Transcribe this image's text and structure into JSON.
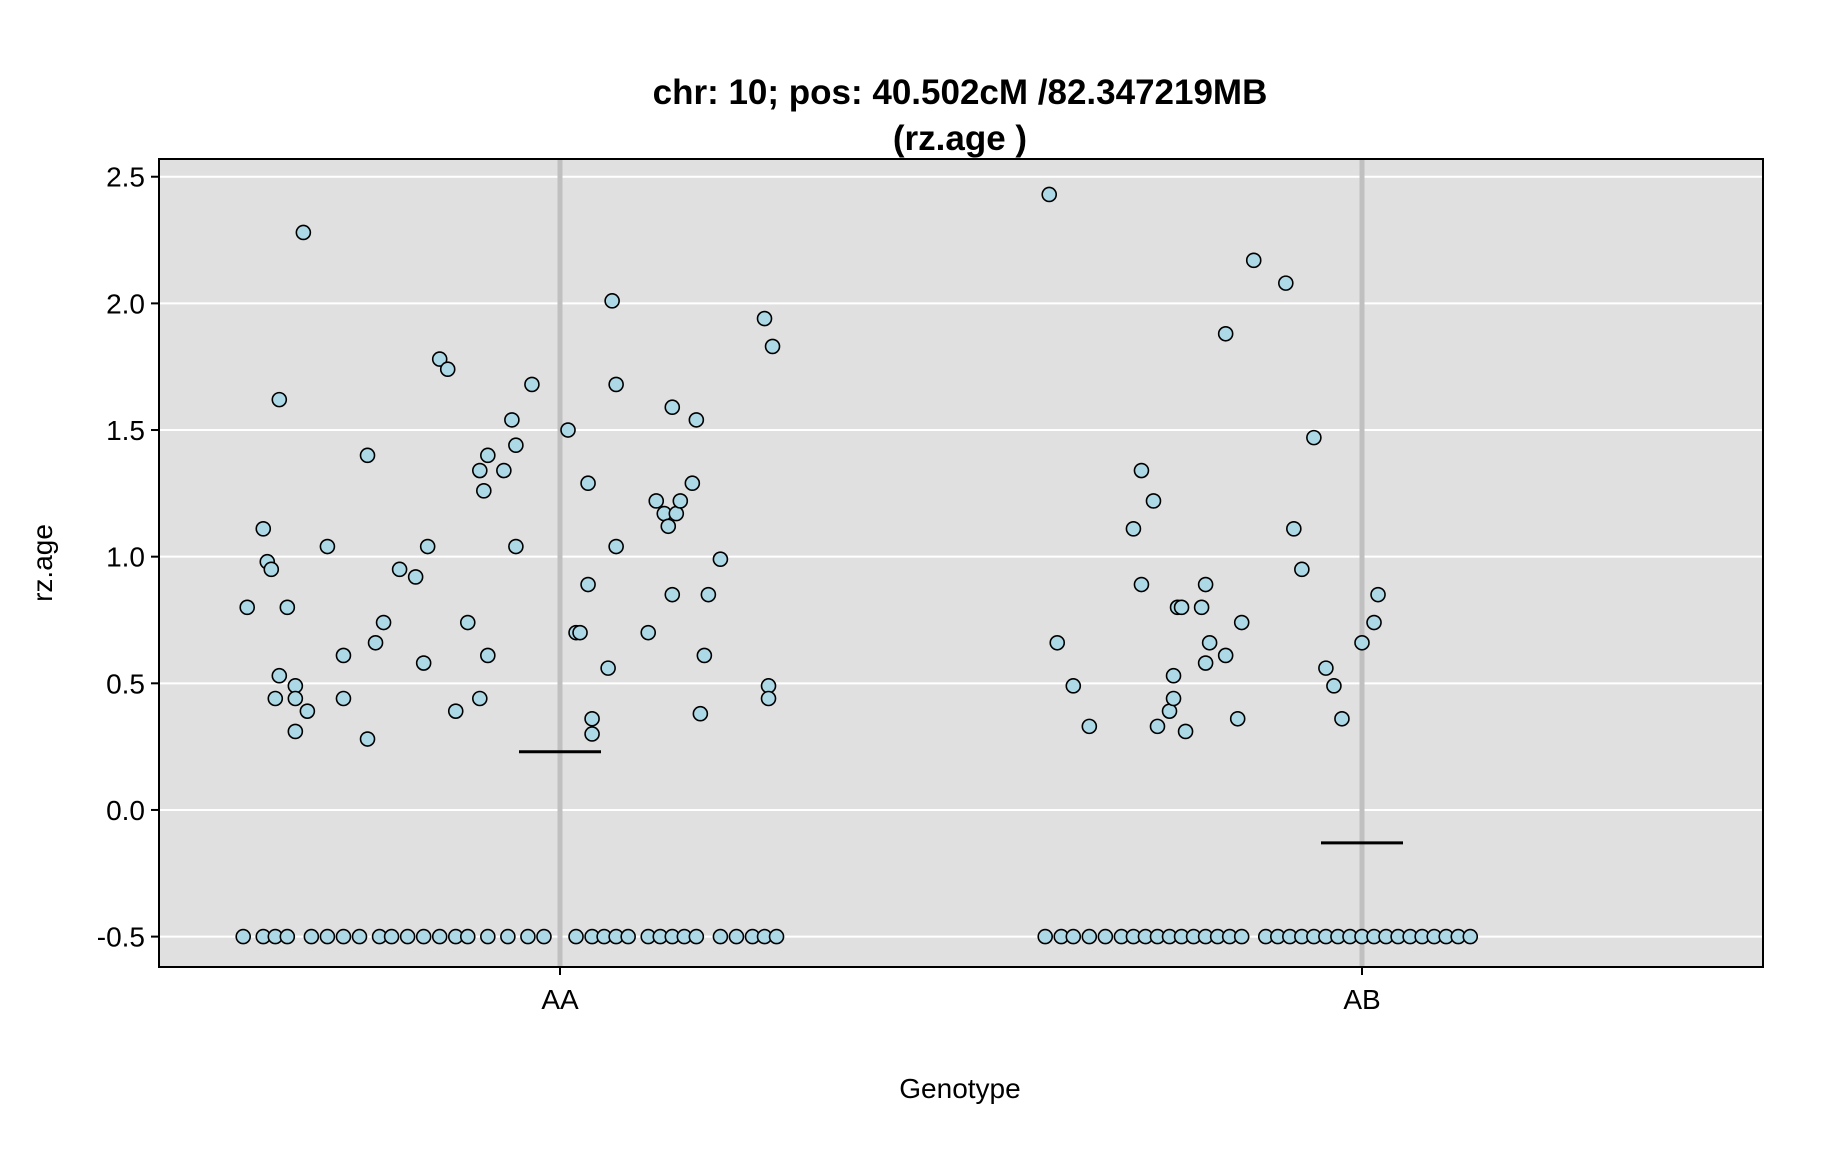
{
  "chart_data": {
    "type": "scatter",
    "title": "chr: 10; pos: 40.502cM /82.347219MB",
    "subtitle": "(rz.age )",
    "xlabel": "Genotype",
    "ylabel": "rz.age",
    "categories": [
      "AA",
      "AB"
    ],
    "ylim": [
      -0.62,
      2.57
    ],
    "yticks": [
      -0.5,
      0.0,
      0.5,
      1.0,
      1.5,
      2.0,
      2.5
    ],
    "ytick_labels": [
      "-0.5",
      "0.0",
      "0.5",
      "1.0",
      "1.5",
      "2.0",
      "2.5"
    ],
    "grid": true,
    "colors": {
      "panel": "#e0e0e0",
      "gridline": "#ffffff",
      "point_fill": "#add8e6",
      "point_edge": "#000000",
      "category_line": "#c0c0c0",
      "mean_line": "#000000"
    },
    "series": [
      {
        "category": "AA",
        "mean": 0.23,
        "points": [
          {
            "j": -0.39,
            "y": 0.8
          },
          {
            "j": -0.37,
            "y": 1.11
          },
          {
            "j": -0.365,
            "y": 0.98
          },
          {
            "j": -0.36,
            "y": 0.95
          },
          {
            "j": -0.35,
            "y": 0.53
          },
          {
            "j": -0.355,
            "y": 0.44
          },
          {
            "j": -0.35,
            "y": 1.62
          },
          {
            "j": -0.34,
            "y": 0.8
          },
          {
            "j": -0.33,
            "y": 0.49
          },
          {
            "j": -0.33,
            "y": 0.44
          },
          {
            "j": -0.33,
            "y": 0.31
          },
          {
            "j": -0.32,
            "y": 2.28
          },
          {
            "j": -0.315,
            "y": 0.39
          },
          {
            "j": -0.29,
            "y": 1.04
          },
          {
            "j": -0.27,
            "y": 0.61
          },
          {
            "j": -0.27,
            "y": 0.44
          },
          {
            "j": -0.24,
            "y": 1.4
          },
          {
            "j": -0.24,
            "y": 0.28
          },
          {
            "j": -0.23,
            "y": 0.66
          },
          {
            "j": -0.22,
            "y": 0.74
          },
          {
            "j": -0.2,
            "y": 0.95
          },
          {
            "j": -0.18,
            "y": 0.92
          },
          {
            "j": -0.17,
            "y": 0.58
          },
          {
            "j": -0.165,
            "y": 1.04
          },
          {
            "j": -0.15,
            "y": 1.78
          },
          {
            "j": -0.14,
            "y": 1.74
          },
          {
            "j": -0.13,
            "y": 0.39
          },
          {
            "j": -0.115,
            "y": 0.74
          },
          {
            "j": -0.1,
            "y": 1.34
          },
          {
            "j": -0.095,
            "y": 1.26
          },
          {
            "j": -0.1,
            "y": 0.44
          },
          {
            "j": -0.09,
            "y": 1.4
          },
          {
            "j": -0.09,
            "y": 0.61
          },
          {
            "j": -0.07,
            "y": 1.34
          },
          {
            "j": -0.06,
            "y": 1.54
          },
          {
            "j": -0.055,
            "y": 1.44
          },
          {
            "j": -0.055,
            "y": 1.04
          },
          {
            "j": -0.035,
            "y": 1.68
          },
          {
            "j": 0.01,
            "y": 1.5
          },
          {
            "j": 0.02,
            "y": 0.7
          },
          {
            "j": 0.025,
            "y": 0.7
          },
          {
            "j": 0.035,
            "y": 1.29
          },
          {
            "j": 0.035,
            "y": 0.89
          },
          {
            "j": 0.04,
            "y": 0.36
          },
          {
            "j": 0.04,
            "y": 0.3
          },
          {
            "j": 0.06,
            "y": 0.56
          },
          {
            "j": 0.065,
            "y": 2.01
          },
          {
            "j": 0.07,
            "y": 1.68
          },
          {
            "j": 0.07,
            "y": 1.04
          },
          {
            "j": 0.11,
            "y": 0.7
          },
          {
            "j": 0.12,
            "y": 1.22
          },
          {
            "j": 0.13,
            "y": 1.17
          },
          {
            "j": 0.135,
            "y": 1.12
          },
          {
            "j": 0.14,
            "y": 1.59
          },
          {
            "j": 0.14,
            "y": 0.85
          },
          {
            "j": 0.145,
            "y": 1.17
          },
          {
            "j": 0.15,
            "y": 1.22
          },
          {
            "j": 0.17,
            "y": 1.54
          },
          {
            "j": 0.165,
            "y": 1.29
          },
          {
            "j": 0.175,
            "y": 0.38
          },
          {
            "j": 0.18,
            "y": 0.61
          },
          {
            "j": 0.185,
            "y": 0.85
          },
          {
            "j": 0.2,
            "y": 0.99
          },
          {
            "j": 0.255,
            "y": 1.94
          },
          {
            "j": 0.26,
            "y": 0.49
          },
          {
            "j": 0.26,
            "y": 0.44
          },
          {
            "j": 0.265,
            "y": 1.83
          },
          {
            "j": -0.395,
            "y": -0.5
          },
          {
            "j": -0.37,
            "y": -0.5
          },
          {
            "j": -0.355,
            "y": -0.5
          },
          {
            "j": -0.34,
            "y": -0.5
          },
          {
            "j": -0.31,
            "y": -0.5
          },
          {
            "j": -0.29,
            "y": -0.5
          },
          {
            "j": -0.27,
            "y": -0.5
          },
          {
            "j": -0.25,
            "y": -0.5
          },
          {
            "j": -0.225,
            "y": -0.5
          },
          {
            "j": -0.21,
            "y": -0.5
          },
          {
            "j": -0.19,
            "y": -0.5
          },
          {
            "j": -0.17,
            "y": -0.5
          },
          {
            "j": -0.15,
            "y": -0.5
          },
          {
            "j": -0.13,
            "y": -0.5
          },
          {
            "j": -0.115,
            "y": -0.5
          },
          {
            "j": -0.09,
            "y": -0.5
          },
          {
            "j": -0.065,
            "y": -0.5
          },
          {
            "j": -0.04,
            "y": -0.5
          },
          {
            "j": -0.02,
            "y": -0.5
          },
          {
            "j": 0.02,
            "y": -0.5
          },
          {
            "j": 0.04,
            "y": -0.5
          },
          {
            "j": 0.055,
            "y": -0.5
          },
          {
            "j": 0.07,
            "y": -0.5
          },
          {
            "j": 0.085,
            "y": -0.5
          },
          {
            "j": 0.11,
            "y": -0.5
          },
          {
            "j": 0.125,
            "y": -0.5
          },
          {
            "j": 0.14,
            "y": -0.5
          },
          {
            "j": 0.155,
            "y": -0.5
          },
          {
            "j": 0.17,
            "y": -0.5
          },
          {
            "j": 0.2,
            "y": -0.5
          },
          {
            "j": 0.22,
            "y": -0.5
          },
          {
            "j": 0.24,
            "y": -0.5
          },
          {
            "j": 0.255,
            "y": -0.5
          },
          {
            "j": 0.27,
            "y": -0.5
          }
        ]
      },
      {
        "category": "AB",
        "mean": -0.13,
        "points": [
          {
            "j": -0.39,
            "y": 2.43
          },
          {
            "j": -0.38,
            "y": 0.66
          },
          {
            "j": -0.36,
            "y": 0.49
          },
          {
            "j": -0.34,
            "y": 0.33
          },
          {
            "j": -0.285,
            "y": 1.11
          },
          {
            "j": -0.275,
            "y": 1.34
          },
          {
            "j": -0.275,
            "y": 0.89
          },
          {
            "j": -0.26,
            "y": 1.22
          },
          {
            "j": -0.255,
            "y": 0.33
          },
          {
            "j": -0.24,
            "y": 0.39
          },
          {
            "j": -0.235,
            "y": 0.44
          },
          {
            "j": -0.235,
            "y": 0.53
          },
          {
            "j": -0.23,
            "y": 0.8
          },
          {
            "j": -0.225,
            "y": 0.8
          },
          {
            "j": -0.22,
            "y": 0.31
          },
          {
            "j": -0.2,
            "y": 0.8
          },
          {
            "j": -0.195,
            "y": 0.58
          },
          {
            "j": -0.195,
            "y": 0.89
          },
          {
            "j": -0.19,
            "y": 0.66
          },
          {
            "j": -0.17,
            "y": 0.61
          },
          {
            "j": -0.17,
            "y": 1.88
          },
          {
            "j": -0.155,
            "y": 0.36
          },
          {
            "j": -0.15,
            "y": 0.74
          },
          {
            "j": -0.135,
            "y": 2.17
          },
          {
            "j": -0.095,
            "y": 2.08
          },
          {
            "j": -0.085,
            "y": 1.11
          },
          {
            "j": -0.075,
            "y": 0.95
          },
          {
            "j": -0.06,
            "y": 1.47
          },
          {
            "j": -0.045,
            "y": 0.56
          },
          {
            "j": -0.035,
            "y": 0.49
          },
          {
            "j": -0.025,
            "y": 0.36
          },
          {
            "j": 0.0,
            "y": 0.66
          },
          {
            "j": 0.015,
            "y": 0.74
          },
          {
            "j": 0.02,
            "y": 0.85
          },
          {
            "j": -0.395,
            "y": -0.5
          },
          {
            "j": -0.375,
            "y": -0.5
          },
          {
            "j": -0.36,
            "y": -0.5
          },
          {
            "j": -0.34,
            "y": -0.5
          },
          {
            "j": -0.32,
            "y": -0.5
          },
          {
            "j": -0.3,
            "y": -0.5
          },
          {
            "j": -0.285,
            "y": -0.5
          },
          {
            "j": -0.27,
            "y": -0.5
          },
          {
            "j": -0.255,
            "y": -0.5
          },
          {
            "j": -0.24,
            "y": -0.5
          },
          {
            "j": -0.225,
            "y": -0.5
          },
          {
            "j": -0.21,
            "y": -0.5
          },
          {
            "j": -0.195,
            "y": -0.5
          },
          {
            "j": -0.18,
            "y": -0.5
          },
          {
            "j": -0.165,
            "y": -0.5
          },
          {
            "j": -0.15,
            "y": -0.5
          },
          {
            "j": -0.12,
            "y": -0.5
          },
          {
            "j": -0.105,
            "y": -0.5
          },
          {
            "j": -0.09,
            "y": -0.5
          },
          {
            "j": -0.075,
            "y": -0.5
          },
          {
            "j": -0.06,
            "y": -0.5
          },
          {
            "j": -0.045,
            "y": -0.5
          },
          {
            "j": -0.03,
            "y": -0.5
          },
          {
            "j": -0.015,
            "y": -0.5
          },
          {
            "j": 0.0,
            "y": -0.5
          },
          {
            "j": 0.015,
            "y": -0.5
          },
          {
            "j": 0.03,
            "y": -0.5
          },
          {
            "j": 0.045,
            "y": -0.5
          },
          {
            "j": 0.06,
            "y": -0.5
          },
          {
            "j": 0.075,
            "y": -0.5
          },
          {
            "j": 0.09,
            "y": -0.5
          },
          {
            "j": 0.105,
            "y": -0.5
          },
          {
            "j": 0.12,
            "y": -0.5
          },
          {
            "j": 0.135,
            "y": -0.5
          }
        ]
      }
    ]
  }
}
